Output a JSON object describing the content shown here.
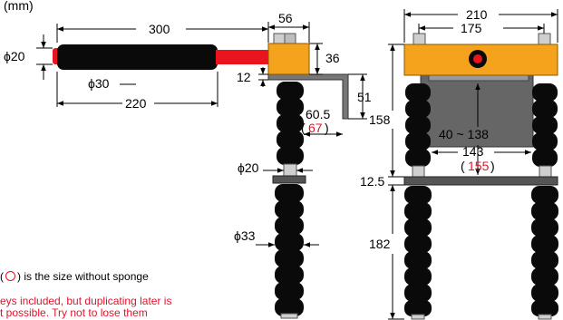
{
  "colors": {
    "orange": "#f5a31c",
    "red": "#e8141e",
    "black": "#0a0a0a",
    "gray": "#666666",
    "silver": "#cfcfcf",
    "accent_red": "#e0142a"
  },
  "labels": {
    "unit": "(mm)",
    "handle_total": "300",
    "grip_diameter": "ϕ30",
    "shaft_diameter": "ϕ20",
    "grip_length": "220",
    "head_width": "56",
    "head_height": "36",
    "plate_thickness": "12",
    "hook_height": "51",
    "hook_reach": "60.5",
    "hook_reach_no_sponge": "67",
    "upper_rod_diameter": "ϕ20",
    "lower_rod_diameter": "ϕ33",
    "total_width": "210",
    "rod_spacing": "175",
    "clamp_range": "40 ~ 138",
    "inner_width": "143",
    "inner_width_no_sponge": "155",
    "upper_height": "158",
    "bar_thickness": "12.5",
    "lower_height": "182"
  },
  "notes": {
    "sponge_note_prefix": "(",
    "sponge_note_suffix": ") is the size without sponge",
    "keys_note_line1": "eys included, but duplicating later is",
    "keys_note_line2": "t possible. Try not to lose them"
  }
}
